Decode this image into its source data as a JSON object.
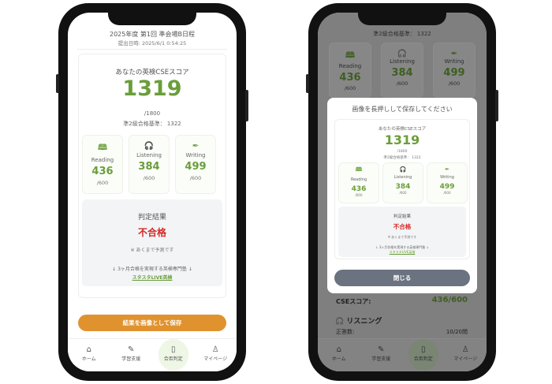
{
  "left": {
    "exam_title": "2025年度 第1回 準会場B日程",
    "submitted": "提出日時: 2025/6/1 0:54:25",
    "score_heading": "あなたの英検CSEスコア",
    "total_score": "1319",
    "total_max": "/1800",
    "pass_line": "準2級合格基準： 1322",
    "skills": [
      {
        "icon": "book-icon",
        "glyph": "🕮",
        "label": "Reading",
        "score": "436",
        "max": "/600"
      },
      {
        "icon": "headphones-icon",
        "glyph": "🎧",
        "label": "Listening",
        "score": "384",
        "max": "/600"
      },
      {
        "icon": "pen-nib-icon",
        "glyph": "✒",
        "label": "Writing",
        "score": "499",
        "max": "/600"
      }
    ],
    "result_heading": "判定結果",
    "result": "不合格",
    "note": "※ あくまで予測です",
    "promo": "↓ 3ヶ月合格を実現する英検専門塾 ↓",
    "promo_link": "スタスタLIVE英検",
    "save_button": "結果を画像として保存"
  },
  "modal": {
    "title": "画像を長押しして保存してください",
    "close_button": "閉じる"
  },
  "background": {
    "pass_line": "準2級合格基準： 1322",
    "cse_label": "CSEスコア:",
    "cse_value": "436/600",
    "section": "リスニング",
    "row_label": "正答数:",
    "row_value": "10/20問"
  },
  "nav": [
    {
      "icon": "home-icon",
      "glyph": "⌂",
      "label": "ホーム"
    },
    {
      "icon": "pen-icon",
      "glyph": "✎",
      "label": "学習支援"
    },
    {
      "icon": "clipboard-icon",
      "glyph": "▯",
      "label": "合否判定",
      "active": true
    },
    {
      "icon": "user-icon",
      "glyph": "♙",
      "label": "マイページ"
    }
  ],
  "colors": {
    "green": "#6a9e3a",
    "red": "#d42a2a",
    "orange": "#e0922f",
    "close": "#6b7280"
  }
}
